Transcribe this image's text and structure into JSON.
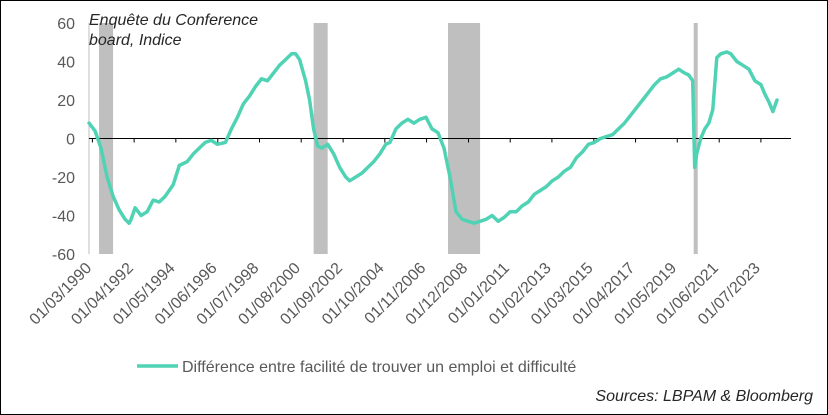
{
  "chart_data": {
    "type": "line",
    "title": "Enquête du Conference board, Indice",
    "title_lines": [
      "Enquête du Conference",
      "board, Indice"
    ],
    "source": "Sources: LBPAM & Bloomberg",
    "ylim": [
      -60,
      60
    ],
    "yticks": [
      60,
      40,
      20,
      0,
      -20,
      -40,
      -60
    ],
    "xlim": [
      1990.0,
      2025.0
    ],
    "xtick_labels": [
      "01/03/1990",
      "01/04/1992",
      "01/05/1994",
      "01/06/1996",
      "01/07/1998",
      "01/08/2000",
      "01/09/2002",
      "01/10/2004",
      "01/11/2006",
      "01/12/2008",
      "01/01/2011",
      "01/02/2013",
      "01/03/2015",
      "01/04/2017",
      "01/05/2019",
      "01/06/2021",
      "01/07/2023"
    ],
    "xtick_positions": [
      1990.17,
      1992.25,
      1994.33,
      1996.42,
      1998.5,
      2000.58,
      2002.67,
      2004.75,
      2006.83,
      2008.92,
      2011.0,
      2013.08,
      2015.17,
      2017.25,
      2019.33,
      2021.42,
      2023.5
    ],
    "recessions": [
      [
        1990.5,
        1991.2
      ],
      [
        2001.2,
        2001.9
      ],
      [
        2007.9,
        2009.5
      ],
      [
        2020.15,
        2020.35
      ]
    ],
    "recession_color": "#bfbfbf",
    "series": [
      {
        "name": "Différence entre facilité de trouver un emploi  et difficulté",
        "color": "#50d2b4",
        "x": [
          1990.0,
          1990.3,
          1990.6,
          1990.9,
          1991.2,
          1991.5,
          1991.8,
          1992.0,
          1992.1,
          1992.3,
          1992.6,
          1992.9,
          1993.2,
          1993.5,
          1993.8,
          1994.2,
          1994.5,
          1994.9,
          1995.2,
          1995.5,
          1995.8,
          1996.1,
          1996.4,
          1996.8,
          1997.1,
          1997.4,
          1997.7,
          1998.0,
          1998.3,
          1998.6,
          1998.9,
          1999.2,
          1999.5,
          1999.8,
          2000.1,
          2000.3,
          2000.5,
          2000.8,
          2001.0,
          2001.2,
          2001.4,
          2001.6,
          2001.9,
          2002.2,
          2002.5,
          2002.8,
          2003.0,
          2003.3,
          2003.6,
          2003.9,
          2004.2,
          2004.5,
          2004.8,
          2005.0,
          2005.3,
          2005.6,
          2005.9,
          2006.2,
          2006.5,
          2006.8,
          2007.1,
          2007.4,
          2007.7,
          2008.0,
          2008.3,
          2008.6,
          2008.9,
          2009.2,
          2009.5,
          2009.8,
          2010.1,
          2010.4,
          2010.7,
          2011.0,
          2011.3,
          2011.6,
          2011.9,
          2012.2,
          2012.5,
          2012.8,
          2013.1,
          2013.4,
          2013.7,
          2014.0,
          2014.3,
          2014.6,
          2014.9,
          2015.2,
          2015.5,
          2015.8,
          2016.1,
          2016.4,
          2016.7,
          2017.0,
          2017.3,
          2017.6,
          2017.9,
          2018.2,
          2018.5,
          2018.8,
          2019.1,
          2019.4,
          2019.7,
          2019.9,
          2020.1,
          2020.2,
          2020.3,
          2020.5,
          2020.7,
          2020.9,
          2021.1,
          2021.3,
          2021.5,
          2021.8,
          2022.0,
          2022.3,
          2022.6,
          2022.9,
          2023.2,
          2023.5,
          2023.7,
          2023.9,
          2024.1,
          2024.3
        ],
        "values": [
          8,
          4,
          -5,
          -20,
          -30,
          -37,
          -42,
          -44,
          -42,
          -36,
          -40,
          -38,
          -32,
          -33,
          -30,
          -24,
          -14,
          -12,
          -8,
          -5,
          -2,
          -1,
          -3,
          -2,
          5,
          11,
          18,
          22,
          27,
          31,
          30,
          34,
          38,
          41,
          44,
          44,
          41,
          30,
          20,
          5,
          -4,
          -5,
          -3,
          -8,
          -15,
          -20,
          -22,
          -20,
          -18,
          -15,
          -12,
          -8,
          -3,
          -2,
          5,
          8,
          10,
          8,
          10,
          11,
          5,
          3,
          -5,
          -20,
          -38,
          -42,
          -43,
          -44,
          -43,
          -42,
          -40,
          -43,
          -41,
          -38,
          -38,
          -35,
          -33,
          -29,
          -27,
          -25,
          -22,
          -20,
          -17,
          -15,
          -10,
          -7,
          -3,
          -2,
          0,
          1,
          2,
          5,
          8,
          12,
          16,
          20,
          24,
          28,
          31,
          32,
          34,
          36,
          34,
          33,
          30,
          -15,
          -8,
          0,
          5,
          8,
          15,
          42,
          44,
          45,
          44,
          40,
          38,
          36,
          30,
          28,
          23,
          19,
          14,
          20
        ]
      }
    ]
  }
}
